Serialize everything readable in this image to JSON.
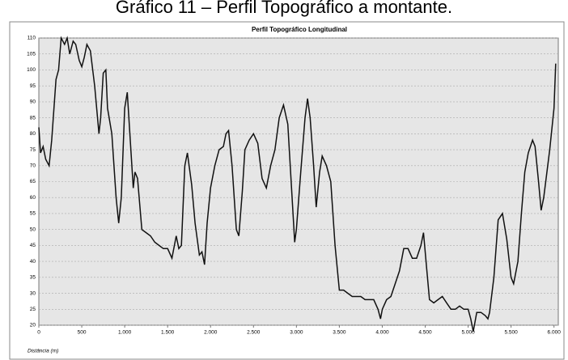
{
  "caption": "Gráfico 11 – Perfil Topográfico a montante.",
  "chart_data": {
    "type": "line",
    "title": "Perfil Topográfico Longitudinal",
    "x_label": "Distância (m)",
    "color": "#111111",
    "grid": true,
    "xlim": [
      0,
      6050
    ],
    "ylim": [
      20,
      110
    ],
    "xticks": [
      0,
      500,
      {
        "value": 1000,
        "label": "1.000"
      },
      {
        "value": 1500,
        "label": "1.500"
      },
      {
        "value": 2000,
        "label": "2.000"
      },
      {
        "value": 2500,
        "label": "2.500"
      },
      {
        "value": 3000,
        "label": "3.000"
      },
      {
        "value": 3500,
        "label": "3.500"
      },
      {
        "value": 4000,
        "label": "4.000"
      },
      {
        "value": 4500,
        "label": "4.500"
      },
      {
        "value": 5000,
        "label": "5.000"
      },
      {
        "value": 5500,
        "label": "5.500"
      },
      {
        "value": 6000,
        "label": "6.000"
      }
    ],
    "yticks": [
      20,
      25,
      30,
      35,
      40,
      45,
      50,
      55,
      60,
      65,
      70,
      75,
      80,
      85,
      90,
      95,
      100,
      105,
      110
    ],
    "x": [
      0,
      20,
      50,
      80,
      120,
      150,
      200,
      230,
      260,
      300,
      330,
      360,
      400,
      430,
      470,
      500,
      530,
      560,
      600,
      650,
      700,
      720,
      750,
      780,
      800,
      850,
      900,
      930,
      960,
      1000,
      1030,
      1060,
      1100,
      1120,
      1150,
      1200,
      1250,
      1300,
      1350,
      1400,
      1450,
      1500,
      1550,
      1600,
      1630,
      1660,
      1700,
      1730,
      1780,
      1820,
      1870,
      1900,
      1930,
      1960,
      2000,
      2050,
      2100,
      2150,
      2180,
      2210,
      2250,
      2300,
      2330,
      2370,
      2400,
      2450,
      2500,
      2550,
      2600,
      2650,
      2700,
      2750,
      2800,
      2850,
      2900,
      2950,
      2980,
      3000,
      3050,
      3100,
      3130,
      3160,
      3200,
      3230,
      3270,
      3300,
      3350,
      3400,
      3450,
      3500,
      3550,
      3600,
      3650,
      3700,
      3750,
      3800,
      3850,
      3900,
      3950,
      3980,
      4000,
      4050,
      4100,
      4150,
      4200,
      4250,
      4300,
      4350,
      4400,
      4450,
      4480,
      4520,
      4550,
      4600,
      4650,
      4700,
      4750,
      4800,
      4850,
      4900,
      4950,
      5000,
      5030,
      5060,
      5100,
      5150,
      5200,
      5230,
      5250,
      5300,
      5350,
      5400,
      5450,
      5500,
      5530,
      5580,
      5620,
      5660,
      5700,
      5750,
      5780,
      5820,
      5850,
      5880,
      5950,
      6000,
      6020
    ],
    "values": [
      82,
      74,
      76,
      72,
      70,
      78,
      97,
      100,
      110,
      108,
      110,
      105,
      109,
      108,
      103,
      101,
      104,
      108,
      106,
      95,
      80,
      85,
      99,
      100,
      88,
      80,
      60,
      52,
      60,
      88,
      93,
      80,
      63,
      68,
      66,
      50,
      49,
      48,
      46,
      45,
      44,
      44,
      41,
      48,
      44,
      45,
      70,
      74,
      64,
      52,
      42,
      43,
      39,
      52,
      63,
      70,
      75,
      76,
      80,
      81,
      70,
      50,
      48,
      62,
      75,
      78,
      80,
      77,
      66,
      63,
      70,
      75,
      85,
      89,
      83,
      60,
      46,
      50,
      68,
      85,
      91,
      85,
      70,
      57,
      68,
      73,
      70,
      65,
      45,
      31,
      31,
      30,
      29,
      29,
      29,
      28,
      28,
      28,
      25,
      22,
      25,
      28,
      29,
      33,
      37,
      44,
      44,
      41,
      41,
      45,
      49,
      37,
      28,
      27,
      28,
      29,
      27,
      25,
      25,
      26,
      25,
      25,
      22,
      18,
      24,
      24,
      23,
      22,
      24,
      35,
      53,
      55,
      47,
      35,
      33,
      40,
      55,
      68,
      74,
      78,
      76,
      65,
      56,
      60,
      75,
      88,
      102
    ]
  }
}
